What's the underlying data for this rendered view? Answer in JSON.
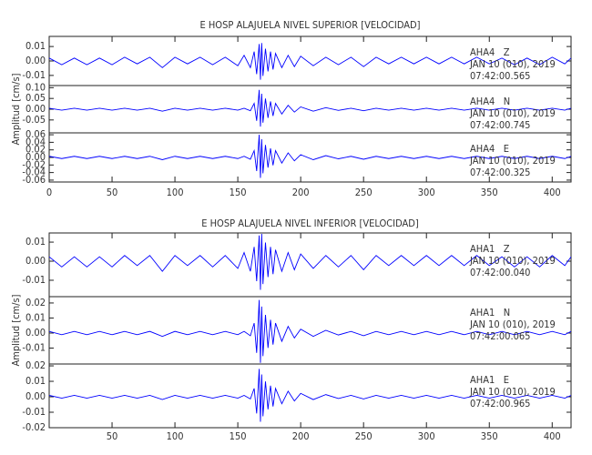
{
  "chart_data": [
    {
      "type": "line",
      "title": "E HOSP ALAJUELA NIVEL SUPERIOR [VELOCIDAD]",
      "ylabel": "Amplitud [cm/s]",
      "xlim": [
        0,
        415
      ],
      "xticks": [
        0,
        50,
        100,
        150,
        200,
        250,
        300,
        350,
        400
      ],
      "x": [
        0,
        10,
        20,
        30,
        40,
        50,
        60,
        70,
        80,
        90,
        100,
        110,
        120,
        130,
        140,
        150,
        155,
        160,
        163,
        165,
        167,
        168,
        169,
        170,
        172,
        174,
        176,
        178,
        180,
        185,
        190,
        195,
        200,
        210,
        220,
        230,
        240,
        250,
        260,
        270,
        280,
        290,
        300,
        310,
        320,
        330,
        340,
        350,
        360,
        370,
        380,
        390,
        400,
        410,
        415
      ],
      "panels": [
        {
          "name": "AHA4   Z",
          "date": "JAN 10 (010), 2019",
          "time": "07:42:00.565",
          "color": "#0000ff",
          "ylim": [
            -0.017,
            0.017
          ],
          "yticks": [
            {
              "value": 0.01,
              "label": "0.01"
            },
            {
              "value": 0,
              "label": "0.00"
            },
            {
              "value": -0.01,
              "label": "-0.01"
            }
          ],
          "values": [
            0.002,
            -0.0026,
            0.002,
            -0.0026,
            0.002,
            -0.0026,
            0.0026,
            -0.002,
            0.0026,
            -0.0046,
            0.0026,
            -0.002,
            0.0026,
            -0.0026,
            0.0026,
            -0.0033,
            0.0039,
            -0.0046,
            0.0065,
            -0.0091,
            0.0117,
            -0.013,
            0.0124,
            -0.0104,
            0.0085,
            -0.0072,
            0.0065,
            -0.0059,
            0.0052,
            -0.0046,
            0.0039,
            -0.0039,
            0.0033,
            -0.0033,
            0.0026,
            -0.0026,
            0.0026,
            -0.0039,
            0.0026,
            -0.002,
            0.0026,
            -0.002,
            0.0026,
            -0.002,
            0.0026,
            -0.002,
            0.0026,
            -0.002,
            0.002,
            -0.0026,
            0.002,
            -0.0026,
            0.0026,
            -0.002,
            0.002
          ]
        },
        {
          "name": "AHA4   N",
          "date": "JAN 10 (010), 2019",
          "time": "07:42:00.745",
          "color": "#0000ff",
          "ylim": [
            -0.11,
            0.11
          ],
          "yticks": [
            {
              "value": 0.1,
              "label": "0.10"
            },
            {
              "value": 0.05,
              "label": "0.05"
            },
            {
              "value": 0,
              "label": "0.00"
            },
            {
              "value": -0.05,
              "label": "-0.05"
            }
          ],
          "values": [
            0.0045,
            -0.0045,
            0.0045,
            -0.0045,
            0.0045,
            -0.0045,
            0.0045,
            -0.0045,
            0.0045,
            -0.009,
            0.0045,
            -0.0045,
            0.0045,
            -0.0045,
            0.0045,
            -0.0045,
            0.0045,
            -0.0072,
            0.027,
            -0.054,
            0.09,
            -0.081,
            0.072,
            -0.063,
            0.0495,
            -0.0405,
            0.036,
            -0.0315,
            0.027,
            -0.0225,
            0.018,
            -0.0135,
            0.0108,
            -0.009,
            0.0072,
            -0.0054,
            0.0045,
            -0.0072,
            0.0045,
            -0.0045,
            0.0045,
            -0.0045,
            0.0045,
            -0.0045,
            0.0045,
            -0.0045,
            0.0045,
            -0.0045,
            0.0045,
            -0.0045,
            0.0045,
            -0.0045,
            0.0045,
            -0.0045,
            0.0045
          ]
        },
        {
          "name": "AHA4   E",
          "date": "JAN 10 (010), 2019",
          "time": "07:42:00.325",
          "color": "#0000ff",
          "ylim": [
            -0.065,
            0.065
          ],
          "yticks": [
            {
              "value": 0.06,
              "label": "0.06"
            },
            {
              "value": 0.04,
              "label": "0.04"
            },
            {
              "value": 0.02,
              "label": "0.02"
            },
            {
              "value": 0,
              "label": "0.00"
            },
            {
              "value": -0.02,
              "label": "-0.02"
            },
            {
              "value": -0.04,
              "label": "-0.04"
            },
            {
              "value": -0.06,
              "label": "-0.06"
            }
          ],
          "values": [
            0.003,
            -0.003,
            0.003,
            -0.003,
            0.003,
            -0.003,
            0.003,
            -0.003,
            0.003,
            -0.006,
            0.003,
            -0.003,
            0.003,
            -0.003,
            0.003,
            -0.003,
            0.003,
            -0.0048,
            0.018,
            -0.036,
            0.06,
            -0.054,
            0.048,
            -0.042,
            0.033,
            -0.027,
            0.024,
            -0.021,
            0.018,
            -0.015,
            0.012,
            -0.009,
            0.0072,
            -0.006,
            0.0048,
            -0.0036,
            0.003,
            -0.0048,
            0.003,
            -0.003,
            0.003,
            -0.003,
            0.003,
            -0.003,
            0.003,
            -0.003,
            0.003,
            -0.003,
            0.003,
            -0.003,
            0.003,
            -0.003,
            0.003,
            -0.003,
            0.003
          ]
        }
      ]
    },
    {
      "type": "line",
      "title": "E HOSP ALAJUELA NIVEL INFERIOR [VELOCIDAD]",
      "ylabel": "Amplitud [cm/s]",
      "xlim": [
        0,
        415
      ],
      "xticks": [
        50,
        100,
        150,
        200,
        250,
        300,
        350,
        400
      ],
      "x": [
        0,
        10,
        20,
        30,
        40,
        50,
        60,
        70,
        80,
        90,
        100,
        110,
        120,
        130,
        140,
        150,
        155,
        160,
        163,
        165,
        167,
        168,
        169,
        170,
        172,
        174,
        176,
        178,
        180,
        185,
        190,
        195,
        200,
        210,
        220,
        230,
        240,
        250,
        260,
        270,
        280,
        290,
        300,
        310,
        320,
        330,
        340,
        350,
        360,
        370,
        380,
        390,
        400,
        410,
        415
      ],
      "panels": [
        {
          "name": "AHA1   Z",
          "date": "JAN 10 (010), 2019",
          "time": "07:42:00.040",
          "color": "#0000ff",
          "ylim": [
            -0.0186,
            0.0148
          ],
          "yticks": [
            {
              "value": 0.01,
              "label": "0.01"
            },
            {
              "value": 0,
              "label": "0.00"
            },
            {
              "value": -0.01,
              "label": "-0.01"
            }
          ],
          "values": [
            0.0023,
            -0.003,
            0.0023,
            -0.003,
            0.0023,
            -0.003,
            0.003,
            -0.0023,
            0.003,
            -0.0053,
            0.003,
            -0.0023,
            0.003,
            -0.003,
            0.003,
            -0.0038,
            0.0045,
            -0.0053,
            0.0075,
            -0.0105,
            0.0135,
            -0.015,
            0.0143,
            -0.012,
            0.0098,
            -0.0083,
            0.0075,
            -0.0068,
            0.006,
            -0.0053,
            0.0045,
            -0.0045,
            0.0038,
            -0.0038,
            0.003,
            -0.003,
            0.003,
            -0.0045,
            0.003,
            -0.0023,
            0.003,
            -0.0023,
            0.003,
            -0.0023,
            0.003,
            -0.0023,
            0.003,
            -0.0023,
            0.0023,
            -0.003,
            0.0023,
            -0.003,
            0.003,
            -0.0023,
            0.0023
          ]
        },
        {
          "name": "AHA1   N",
          "date": "JAN 10 (010), 2019",
          "time": "07:42:00.065",
          "color": "#0000ff",
          "ylim": [
            -0.0206,
            0.0242
          ],
          "yticks": [
            {
              "value": 0.02,
              "label": "0.02"
            },
            {
              "value": 0.01,
              "label": "0.01"
            },
            {
              "value": 0,
              "label": "0.00"
            },
            {
              "value": -0.01,
              "label": "-0.01"
            }
          ],
          "values": [
            0.0011,
            -0.0011,
            0.0011,
            -0.0011,
            0.0011,
            -0.0011,
            0.0011,
            -0.0011,
            0.0011,
            -0.0022,
            0.0011,
            -0.0011,
            0.0011,
            -0.0011,
            0.0011,
            -0.0011,
            0.0011,
            -0.0018,
            0.0066,
            -0.0132,
            0.022,
            -0.0198,
            0.0176,
            -0.0154,
            0.0121,
            -0.0099,
            0.0088,
            -0.0077,
            0.0066,
            -0.0055,
            0.0044,
            -0.0033,
            0.0026,
            -0.0022,
            0.0018,
            -0.0013,
            0.0011,
            -0.0018,
            0.0011,
            -0.0011,
            0.0011,
            -0.0011,
            0.0011,
            -0.0011,
            0.0011,
            -0.0011,
            0.0011,
            -0.0011,
            0.0011,
            -0.0011,
            0.0011,
            -0.0011,
            0.0011,
            -0.0011,
            0.0011
          ]
        },
        {
          "name": "AHA1   E",
          "date": "JAN 10 (010), 2019",
          "time": "07:42:00.965",
          "color": "#0000ff",
          "ylim": [
            -0.02,
            0.0212
          ],
          "yticks": [
            {
              "value": 0.02,
              "label": "0.02"
            },
            {
              "value": 0.01,
              "label": "0.01"
            },
            {
              "value": 0,
              "label": "0.00"
            },
            {
              "value": -0.01,
              "label": "-0.01"
            },
            {
              "value": -0.02,
              "label": "-0.02"
            }
          ],
          "values": [
            0.0009,
            -0.0009,
            0.0009,
            -0.0009,
            0.0009,
            -0.0009,
            0.0009,
            -0.0009,
            0.0009,
            -0.0018,
            0.0009,
            -0.0009,
            0.0009,
            -0.0009,
            0.0009,
            -0.0009,
            0.0009,
            -0.0014,
            0.0054,
            -0.0108,
            0.018,
            -0.0162,
            0.0144,
            -0.0126,
            0.0099,
            -0.0081,
            0.0072,
            -0.0063,
            0.0054,
            -0.0045,
            0.0036,
            -0.0027,
            0.0022,
            -0.0018,
            0.0014,
            -0.0011,
            0.0009,
            -0.0014,
            0.0009,
            -0.0009,
            0.0009,
            -0.0009,
            0.0009,
            -0.0009,
            0.0009,
            -0.0009,
            0.0009,
            -0.0009,
            0.0009,
            -0.0009,
            0.0009,
            -0.0009,
            0.0009,
            -0.0009,
            0.0009
          ]
        }
      ]
    }
  ]
}
